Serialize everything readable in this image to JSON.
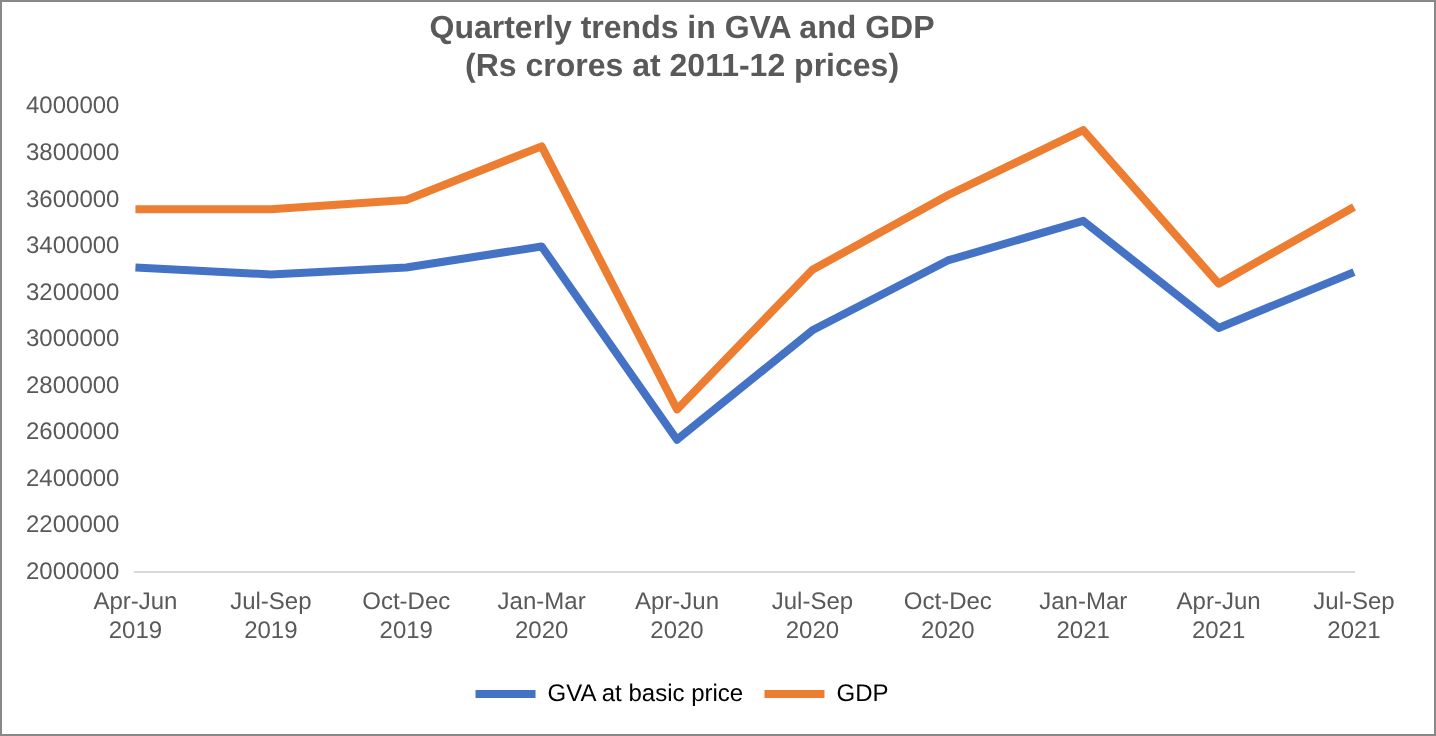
{
  "chart_data": {
    "type": "line",
    "title": "Quarterly trends in GVA and GDP",
    "subtitle": "(Rs crores at 2011-12 prices)",
    "categories": [
      "Apr-Jun 2019",
      "Jul-Sep 2019",
      "Oct-Dec 2019",
      "Jan-Mar 2020",
      "Apr-Jun 2020",
      "Jul-Sep 2020",
      "Oct-Dec 2020",
      "Jan-Mar 2021",
      "Apr-Jun 2021",
      "Jul-Sep 2021"
    ],
    "series": [
      {
        "name": "GVA at basic price",
        "color": "#4472c4",
        "values": [
          3310000,
          3280000,
          3310000,
          3400000,
          2570000,
          3040000,
          3340000,
          3510000,
          3050000,
          3290000
        ]
      },
      {
        "name": "GDP",
        "color": "#ed7d31",
        "values": [
          3560000,
          3560000,
          3600000,
          3830000,
          2700000,
          3300000,
          3620000,
          3900000,
          3240000,
          3570000
        ]
      }
    ],
    "ylim": [
      2000000,
      4000000
    ],
    "yticks": [
      2000000,
      2200000,
      2400000,
      2600000,
      2800000,
      3000000,
      3200000,
      3400000,
      3600000,
      3800000,
      4000000
    ],
    "grid": false,
    "legend": "bottom",
    "marker": "none",
    "line_style": "solid"
  }
}
